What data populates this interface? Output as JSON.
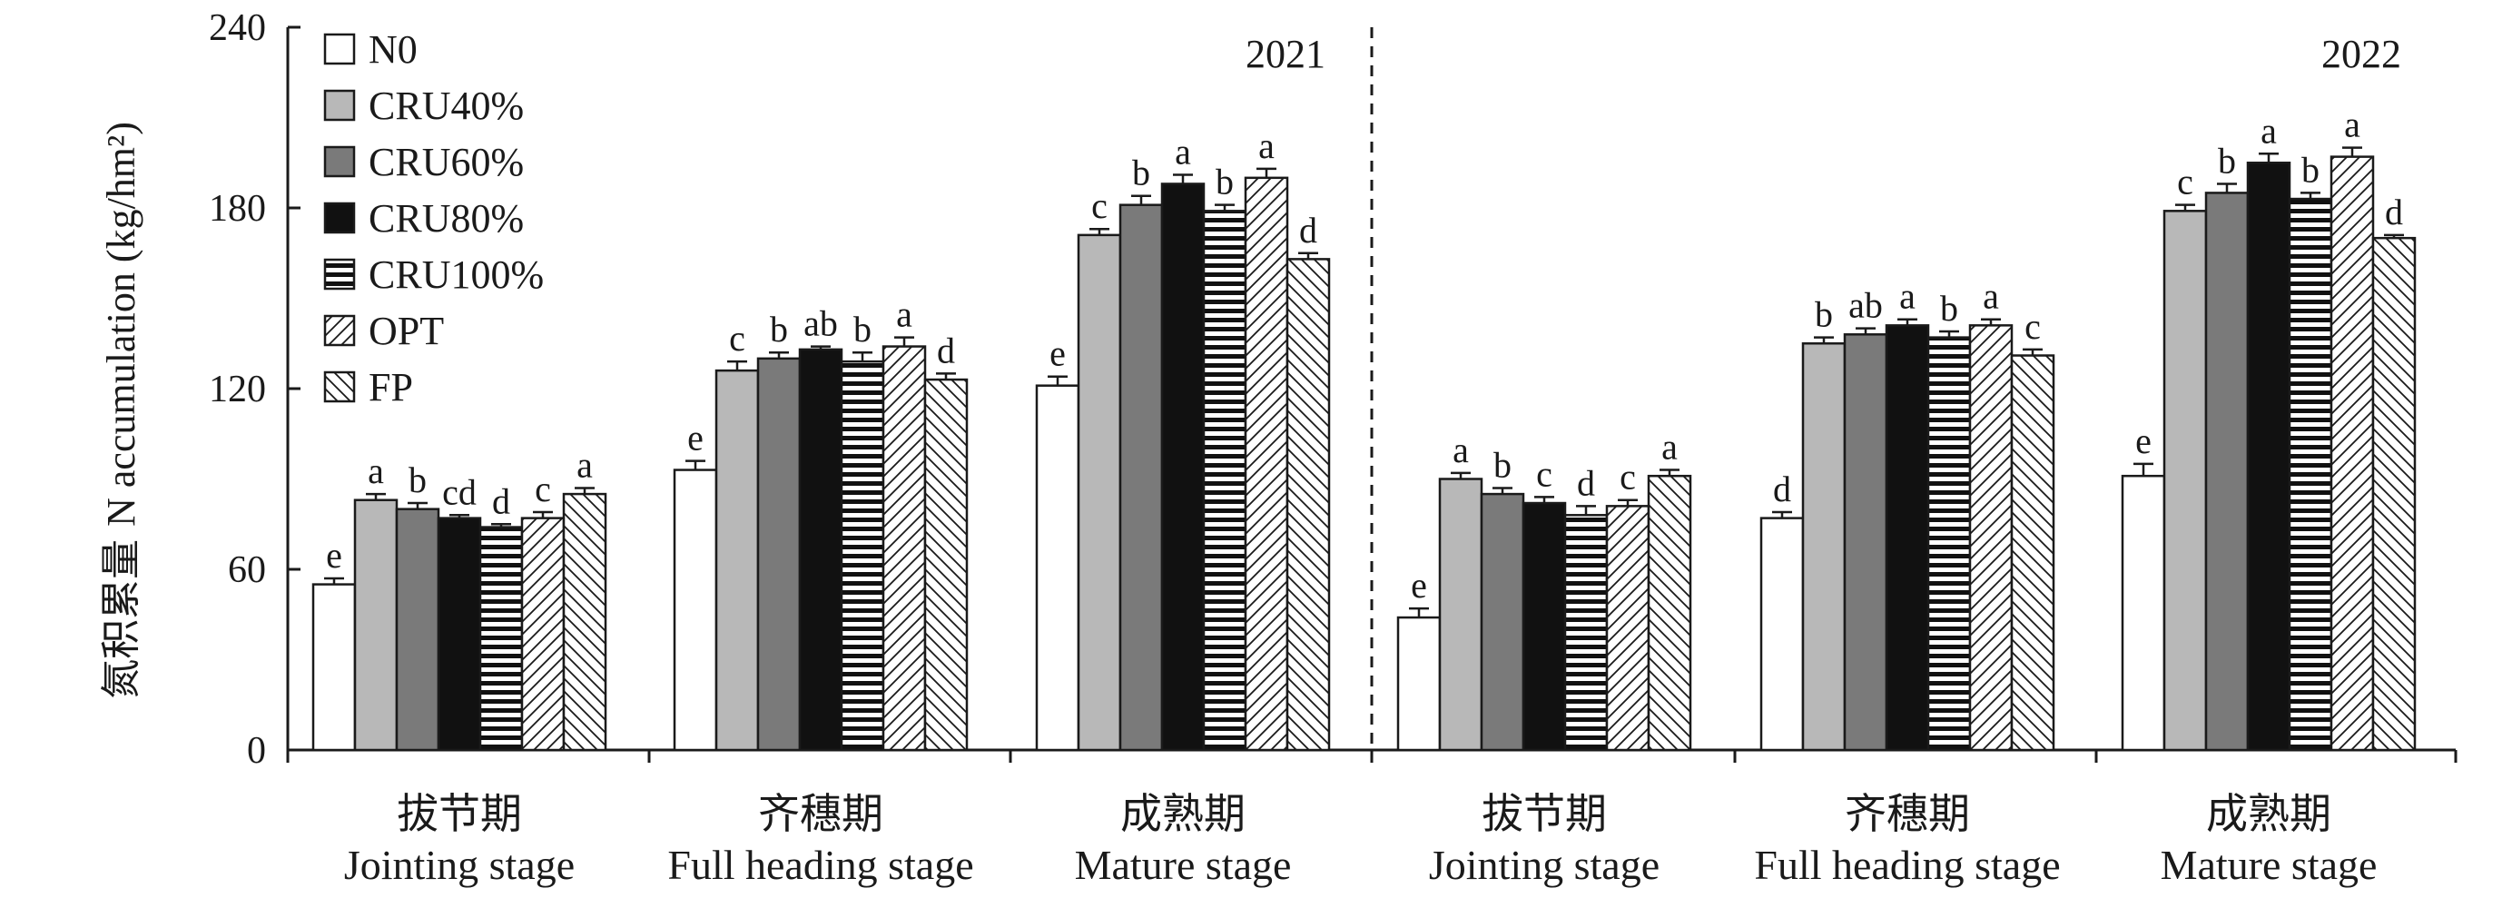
{
  "chart_data": {
    "type": "bar",
    "ylabel_cn": "氮积累量",
    "ylabel_en": "N accumulation (kg/hm²)",
    "ylim": [
      0,
      240
    ],
    "yticks": [
      "0",
      "60",
      "120",
      "180",
      "240"
    ],
    "panels": [
      {
        "year": "2021",
        "categories": [
          {
            "cn": "拔节期",
            "en": "Jointing stage"
          },
          {
            "cn": "齐穗期",
            "en": "Full heading stage"
          },
          {
            "cn": "成熟期",
            "en": "Mature stage"
          }
        ],
        "values": [
          [
            55,
            83,
            80,
            77,
            74,
            77,
            85
          ],
          [
            93,
            126,
            130,
            133,
            129,
            134,
            123
          ],
          [
            121,
            171,
            181,
            188,
            179,
            190,
            163
          ]
        ],
        "errors": [
          [
            2,
            2,
            2,
            1,
            1,
            2,
            2
          ],
          [
            3,
            3,
            2,
            1,
            3,
            3,
            2
          ],
          [
            3,
            2,
            3,
            3,
            2,
            3,
            2
          ]
        ],
        "letters": [
          [
            "e",
            "a",
            "b",
            "cd",
            "d",
            "c",
            "a"
          ],
          [
            "e",
            "c",
            "b",
            "ab",
            "b",
            "a",
            "d"
          ],
          [
            "e",
            "c",
            "b",
            "a",
            "b",
            "a",
            "d"
          ]
        ]
      },
      {
        "year": "2022",
        "categories": [
          {
            "cn": "拔节期",
            "en": "Jointing stage"
          },
          {
            "cn": "齐穗期",
            "en": "Full heading stage"
          },
          {
            "cn": "成熟期",
            "en": "Mature stage"
          }
        ],
        "values": [
          [
            44,
            90,
            85,
            82,
            78,
            81,
            91
          ],
          [
            77,
            135,
            138,
            141,
            137,
            141,
            131
          ],
          [
            91,
            179,
            185,
            195,
            183,
            197,
            170
          ]
        ],
        "errors": [
          [
            3,
            2,
            2,
            2,
            3,
            2,
            2
          ],
          [
            2,
            2,
            2,
            2,
            2,
            2,
            2
          ],
          [
            4,
            2,
            3,
            3,
            2,
            3,
            1
          ]
        ],
        "letters": [
          [
            "e",
            "a",
            "b",
            "c",
            "d",
            "c",
            "a"
          ],
          [
            "d",
            "b",
            "ab",
            "a",
            "b",
            "a",
            "c"
          ],
          [
            "e",
            "c",
            "b",
            "a",
            "b",
            "a",
            "d"
          ]
        ]
      }
    ],
    "series": [
      {
        "name": "N0",
        "pattern": "white"
      },
      {
        "name": "CRU40%",
        "pattern": "light-gray"
      },
      {
        "name": "CRU60%",
        "pattern": "dark-gray"
      },
      {
        "name": "CRU80%",
        "pattern": "black"
      },
      {
        "name": "CRU100%",
        "pattern": "horizontal-stripes"
      },
      {
        "name": "OPT",
        "pattern": "forward-diagonal"
      },
      {
        "name": "FP",
        "pattern": "backward-diagonal"
      }
    ],
    "legend_position": "top-left",
    "grid": false,
    "colors": {
      "light_gray": "#b8b8b8",
      "dark_gray": "#7a7a7a",
      "black": "#111111",
      "stroke": "#1a1a1a"
    }
  }
}
